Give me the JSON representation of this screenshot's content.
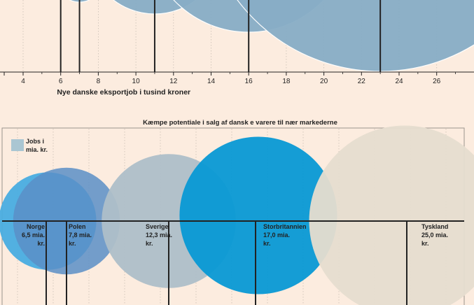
{
  "chart_data": [
    {
      "type": "bubble",
      "xlabel": "Nye danske eksportjob i tusind kroner",
      "xlim": [
        2.5,
        27.8
      ],
      "ticks": [
        4,
        6,
        8,
        10,
        12,
        14,
        16,
        18,
        20,
        22,
        24,
        26
      ],
      "bubbles": [
        {
          "x": 7.0,
          "size": 1.2
        },
        {
          "x": 11.0,
          "size": 3.6
        },
        {
          "x": 16.0,
          "size": 5.5
        },
        {
          "x": 23.0,
          "size": 9.5
        }
      ],
      "markers": [
        6,
        7,
        11,
        16,
        23
      ],
      "colors": {
        "bubble": "#88adc6",
        "axis": "#222222",
        "grid": "#c9bfb5"
      }
    },
    {
      "type": "bubble",
      "title": "Kæmpe potentiale i salg af dansk   e varere til nær markederne",
      "legend": {
        "label_line1": "Jobs i",
        "label_line2": "mia. kr.",
        "color": "#aac6d2"
      },
      "bubbles": [
        {
          "country": "Norge",
          "value_line1": "6,5 mia.",
          "value_line2": "kr.",
          "value": 6.5,
          "color": "#49ade0"
        },
        {
          "country": "Polen",
          "value_line1": "7,8 mia.",
          "value_line2": "kr.",
          "value": 7.8,
          "color": "#5b8fc7"
        },
        {
          "country": "Sverige",
          "value_line1": "12,3 mia.",
          "value_line2": "kr.",
          "value": 12.3,
          "color": "#aebfc8"
        },
        {
          "country": "Storbritannien",
          "value_line1": "17,0 mia.",
          "value_line2": "kr.",
          "value": 17.0,
          "color": "#0899d4"
        },
        {
          "country": "Tyskland",
          "value_line1": "25,0 mia.",
          "value_line2": "kr.",
          "value": 25.0,
          "color": "#e6ddcf"
        }
      ],
      "colors": {
        "axis": "#222222",
        "grid": "#c9bfb5",
        "frame": "#9a948d"
      }
    }
  ]
}
